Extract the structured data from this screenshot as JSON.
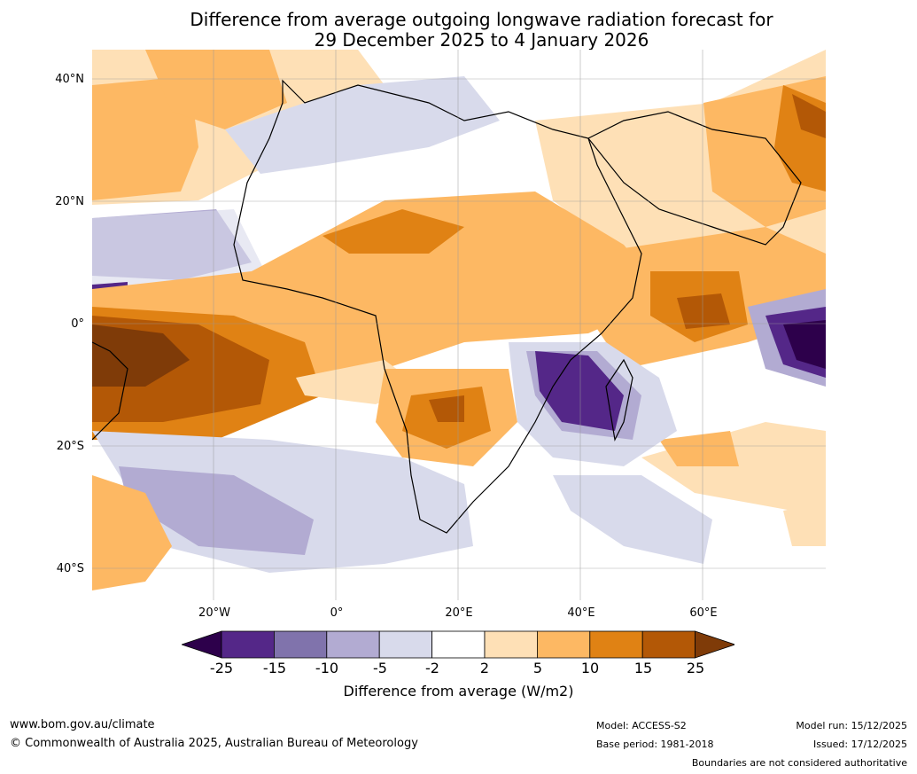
{
  "title": {
    "line1": "Difference from average outgoing longwave radiation forecast for",
    "line2": "29 December 2025 to 4 January 2026"
  },
  "map": {
    "lat_labels": [
      "40°N",
      "20°N",
      "0°",
      "20°S",
      "40°S"
    ],
    "lon_labels": [
      "20°W",
      "0°",
      "20°E",
      "40°E",
      "60°E"
    ],
    "gridlines": true,
    "projection": "Equirectangular"
  },
  "colorbar": {
    "ticks": [
      "-25",
      "-15",
      "-10",
      "-5",
      "-2",
      "2",
      "5",
      "10",
      "15",
      "25"
    ],
    "label": "Difference from average (W/m2)",
    "colors": [
      "#2d004b",
      "#542788",
      "#8073ac",
      "#b2abd2",
      "#d8daeb",
      "#ffffff",
      "#fee0b6",
      "#fdb863",
      "#e08214",
      "#b35806",
      "#7f3b08"
    ]
  },
  "footer": {
    "website": "www.bom.gov.au/climate",
    "copyright": "© Commonwealth of Australia 2025, Australian Bureau of Meteorology",
    "model": "Model: ACCESS-S2",
    "base_period": "Base period: 1981-2018",
    "model_run": "Model run: 15/12/2025",
    "issued": "Issued: 17/12/2025",
    "disclaimer": "Boundaries are not considered authoritative"
  }
}
